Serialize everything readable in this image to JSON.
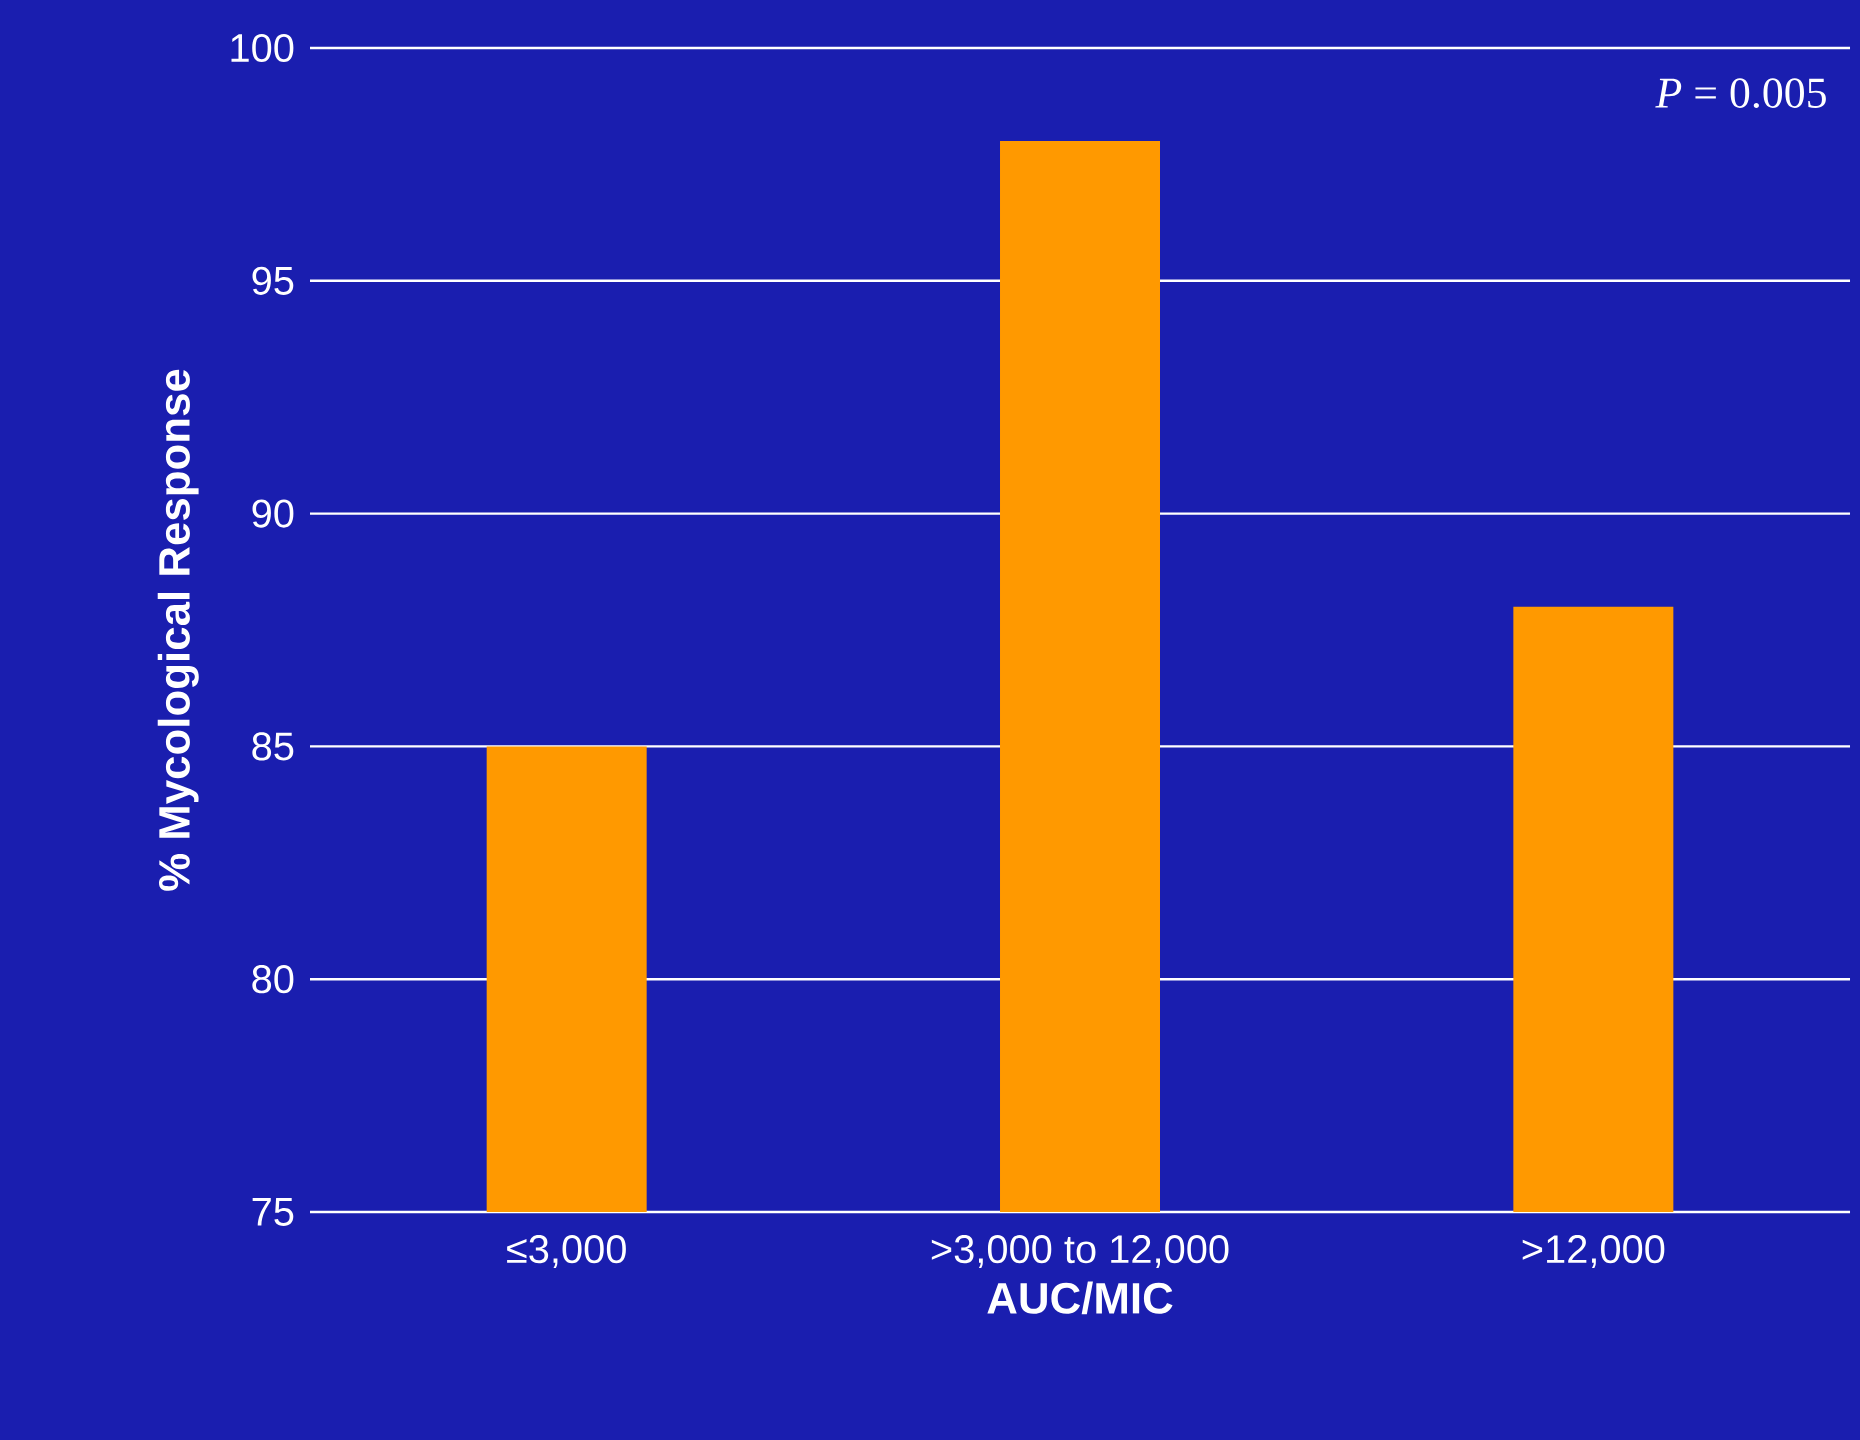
{
  "chart_data": {
    "type": "bar",
    "xlabel": "AUC/MIC",
    "ylabel": "% Mycological Response",
    "categories": [
      "≤3,000",
      ">3,000 to 12,000",
      ">12,000"
    ],
    "values": [
      85,
      98,
      88
    ],
    "color": "#ff9900",
    "ylim": [
      75,
      100
    ],
    "yticks": [
      75,
      80,
      85,
      90,
      95,
      100
    ],
    "grid": "y",
    "annotations": [
      "*P* = 0.005"
    ]
  }
}
